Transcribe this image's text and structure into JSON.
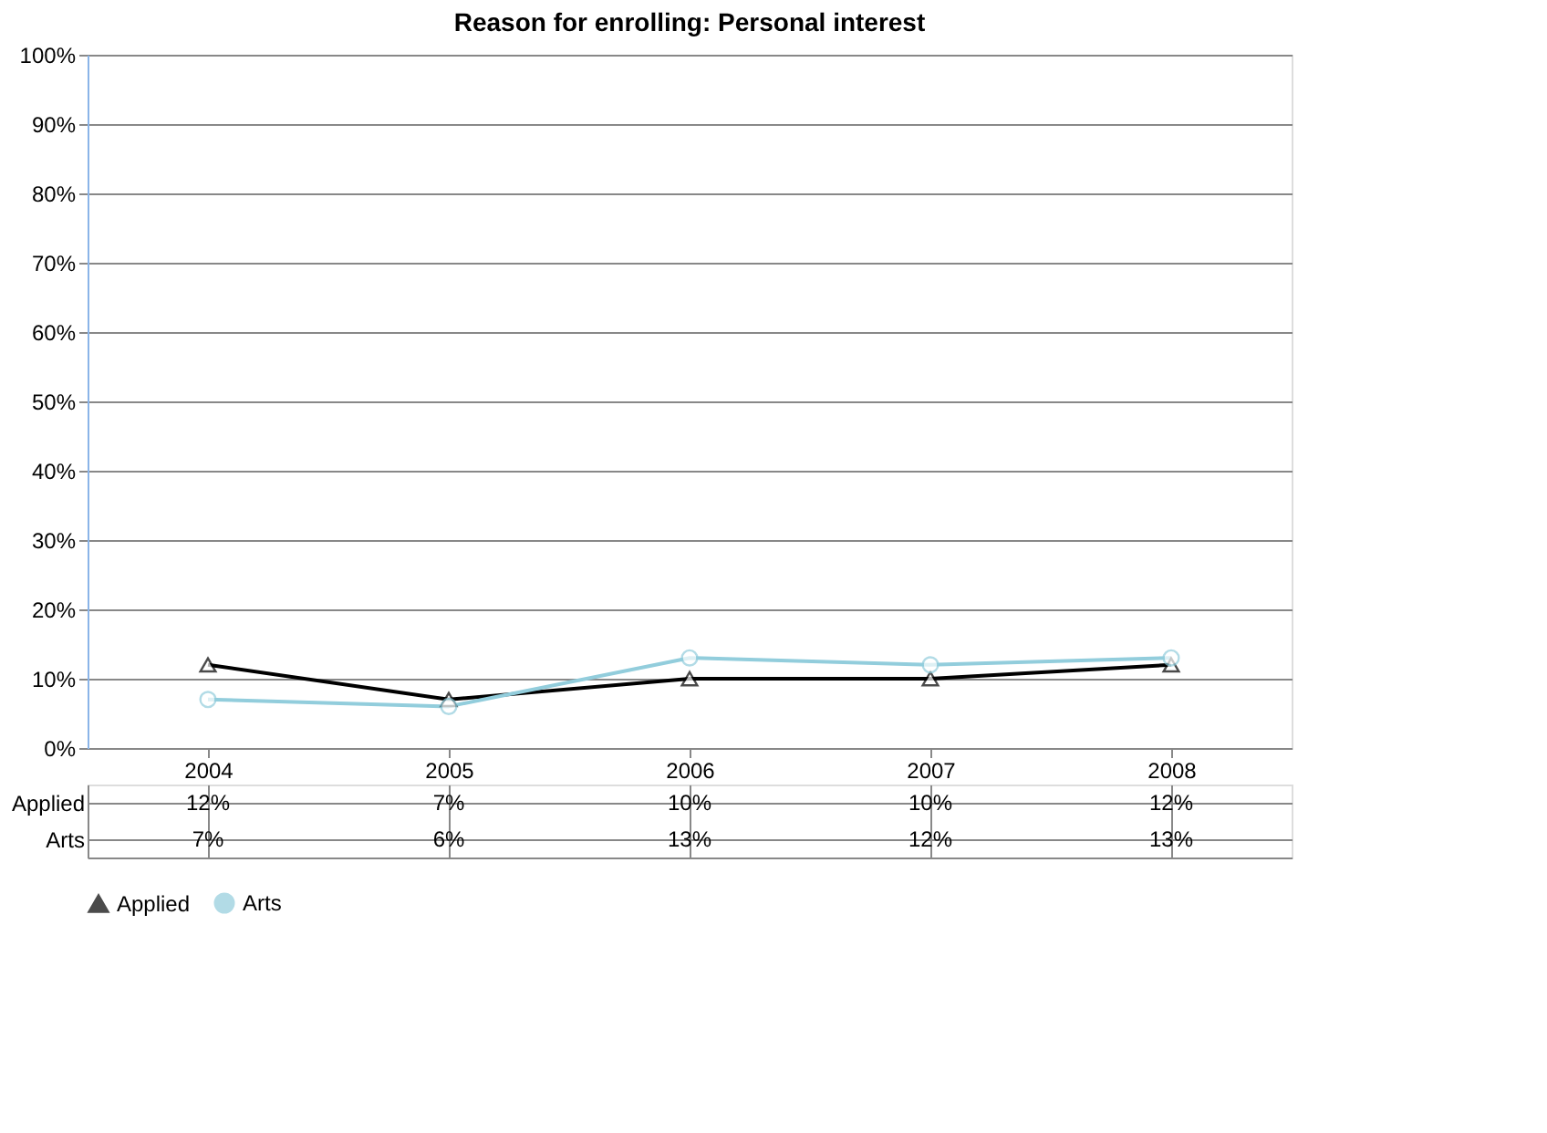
{
  "chart_data": {
    "type": "line",
    "title": "Reason for enrolling: Personal interest",
    "categories": [
      "2004",
      "2005",
      "2006",
      "2007",
      "2008"
    ],
    "series": [
      {
        "name": "Applied",
        "color": "#000000",
        "marker": "triangle",
        "values": [
          12,
          7,
          10,
          10,
          12
        ],
        "value_labels": [
          "12%",
          "7%",
          "10%",
          "10%",
          "12%"
        ]
      },
      {
        "name": "Arts",
        "color": "#92cddc",
        "marker": "circle",
        "values": [
          7,
          6,
          13,
          12,
          13
        ],
        "value_labels": [
          "7%",
          "6%",
          "13%",
          "12%",
          "13%"
        ]
      }
    ],
    "ylim": [
      0,
      100
    ],
    "yticks": [
      {
        "value": 0,
        "label": "0%"
      },
      {
        "value": 10,
        "label": "10%"
      },
      {
        "value": 20,
        "label": "20%"
      },
      {
        "value": 30,
        "label": "30%"
      },
      {
        "value": 40,
        "label": "40%"
      },
      {
        "value": 50,
        "label": "50%"
      },
      {
        "value": 60,
        "label": "60%"
      },
      {
        "value": 70,
        "label": "70%"
      },
      {
        "value": 80,
        "label": "80%"
      },
      {
        "value": 90,
        "label": "90%"
      },
      {
        "value": 100,
        "label": "100%"
      }
    ],
    "grid": "y",
    "legend": "bottom"
  }
}
